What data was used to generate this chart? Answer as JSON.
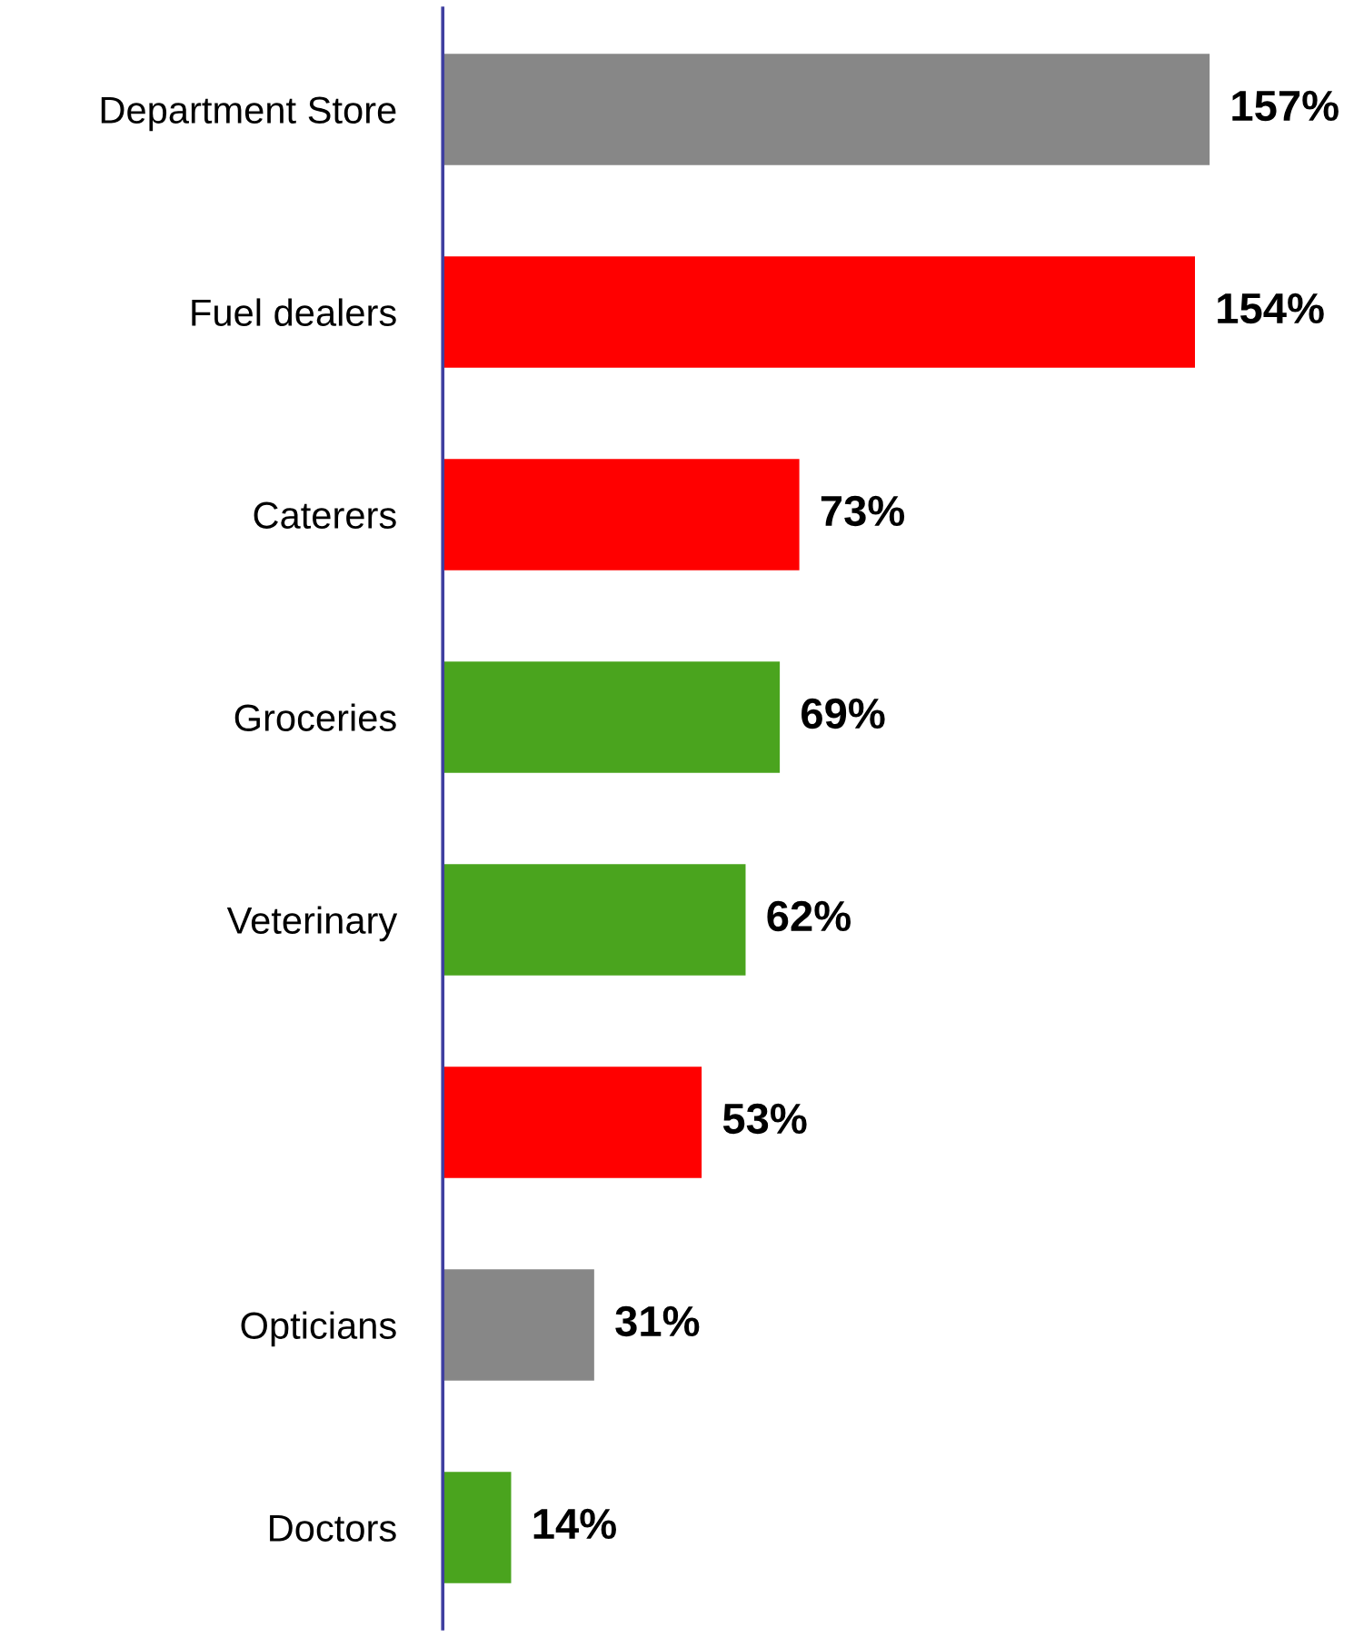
{
  "chart_data": {
    "type": "bar",
    "orientation": "horizontal",
    "categories": [
      "Department Store",
      "Fuel dealers",
      "Caterers",
      "Groceries",
      "Veterinary",
      null,
      "Opticians",
      "Doctors"
    ],
    "values": [
      157,
      154,
      73,
      69,
      62,
      53,
      31,
      14
    ],
    "colors": [
      "#878787",
      "#ff0000",
      "#ff0000",
      "#4aa41e",
      "#4aa41e",
      "#ff0000",
      "#878787",
      "#4aa41e"
    ],
    "value_labels": [
      "157%",
      "154%",
      "73%",
      "69%",
      "62%",
      "53%",
      "31%",
      "14%"
    ],
    "tick_labels": "y",
    "grid": false,
    "legend": false
  }
}
